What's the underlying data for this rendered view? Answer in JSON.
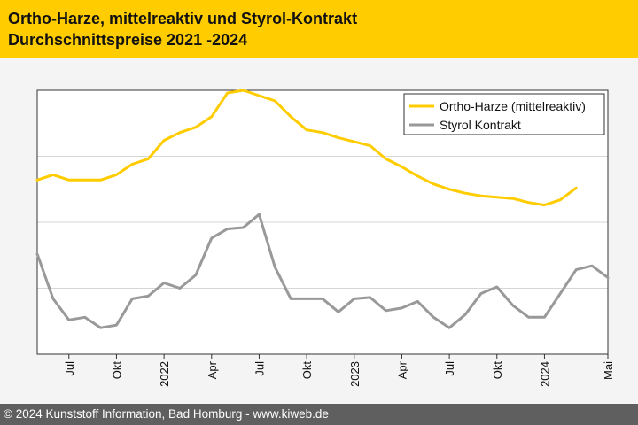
{
  "header": {
    "title_line1": "Ortho-Harze, mittelreaktiv und Styrol-Kontrakt",
    "title_line2": "Durchschnittspreise 2021 -2024"
  },
  "footer": {
    "text": "© 2024 Kunststoff Information, Bad Homburg - www.kiweb.de"
  },
  "colors": {
    "header_bg": "#ffcc00",
    "ortho": "#ffcc00",
    "styrol": "#999999",
    "footer_bg": "#5f5f5f"
  },
  "chart_data": {
    "type": "line",
    "title": "",
    "xlabel": "",
    "ylabel": "",
    "y_axis_labels_shown": false,
    "grid": "horizontal",
    "legend_position": "top-right",
    "x": [
      "2021-05",
      "2021-06",
      "2021-07",
      "2021-08",
      "2021-09",
      "2021-10",
      "2021-11",
      "2021-12",
      "2022-01",
      "2022-02",
      "2022-03",
      "2022-04",
      "2022-05",
      "2022-06",
      "2022-07",
      "2022-08",
      "2022-09",
      "2022-10",
      "2022-11",
      "2022-12",
      "2023-01",
      "2023-02",
      "2023-03",
      "2023-04",
      "2023-05",
      "2023-06",
      "2023-07",
      "2023-08",
      "2023-09",
      "2023-10",
      "2023-11",
      "2023-12",
      "2024-01",
      "2024-02",
      "2024-03",
      "2024-04",
      "2024-05"
    ],
    "x_ticks": [
      {
        "x": "2021-07",
        "label": "Jul"
      },
      {
        "x": "2021-10",
        "label": "Okt"
      },
      {
        "x": "2022-01",
        "label": "2022"
      },
      {
        "x": "2022-04",
        "label": "Apr"
      },
      {
        "x": "2022-07",
        "label": "Jul"
      },
      {
        "x": "2022-10",
        "label": "Okt"
      },
      {
        "x": "2023-01",
        "label": "2023"
      },
      {
        "x": "2023-04",
        "label": "Apr"
      },
      {
        "x": "2023-07",
        "label": "Jul"
      },
      {
        "x": "2023-10",
        "label": "Okt"
      },
      {
        "x": "2024-01",
        "label": "2024"
      },
      {
        "x": "2024-05",
        "label": "Mai"
      }
    ],
    "ylim": [
      0,
      100
    ],
    "series": [
      {
        "name": "Ortho-Harze (mittelreaktiv)",
        "color": "#ffcc00",
        "x": [
          "2021-05",
          "2021-06",
          "2021-07",
          "2021-08",
          "2021-09",
          "2021-10",
          "2021-11",
          "2021-12",
          "2022-01",
          "2022-02",
          "2022-03",
          "2022-04",
          "2022-05",
          "2022-06",
          "2022-07",
          "2022-08",
          "2022-09",
          "2022-10",
          "2022-11",
          "2022-12",
          "2023-01",
          "2023-02",
          "2023-03",
          "2023-04",
          "2023-05",
          "2023-06",
          "2023-07",
          "2023-08",
          "2023-09",
          "2023-10",
          "2023-11",
          "2023-12",
          "2024-01",
          "2024-02",
          "2024-03"
        ],
        "values": [
          66,
          68,
          66,
          66,
          66,
          68,
          72,
          74,
          81,
          84,
          86,
          90,
          99,
          100,
          98,
          96,
          90,
          85,
          84,
          82,
          80.5,
          79,
          74,
          71,
          67.5,
          64.5,
          62.5,
          61,
          60,
          59.5,
          59,
          57.5,
          56.5,
          58.5,
          63
        ]
      },
      {
        "name": "Styrol Kontrakt",
        "color": "#999999",
        "x": [
          "2021-05",
          "2021-06",
          "2021-07",
          "2021-08",
          "2021-09",
          "2021-10",
          "2021-11",
          "2021-12",
          "2022-01",
          "2022-02",
          "2022-03",
          "2022-04",
          "2022-05",
          "2022-06",
          "2022-07",
          "2022-08",
          "2022-09",
          "2022-10",
          "2022-11",
          "2022-12",
          "2023-01",
          "2023-02",
          "2023-03",
          "2023-04",
          "2023-05",
          "2023-06",
          "2023-07",
          "2023-08",
          "2023-09",
          "2023-10",
          "2023-11",
          "2023-12",
          "2024-01",
          "2024-02",
          "2024-03",
          "2024-04",
          "2024-05"
        ],
        "values": [
          38,
          21,
          13,
          14,
          10,
          11,
          21,
          22,
          27,
          25,
          30,
          44,
          47.5,
          48,
          53,
          33,
          21,
          21,
          21,
          16,
          21,
          21.5,
          16.5,
          17.5,
          20,
          14,
          10,
          15,
          23,
          25.5,
          18.5,
          14,
          14,
          23,
          32,
          33.5,
          29
        ]
      }
    ]
  }
}
